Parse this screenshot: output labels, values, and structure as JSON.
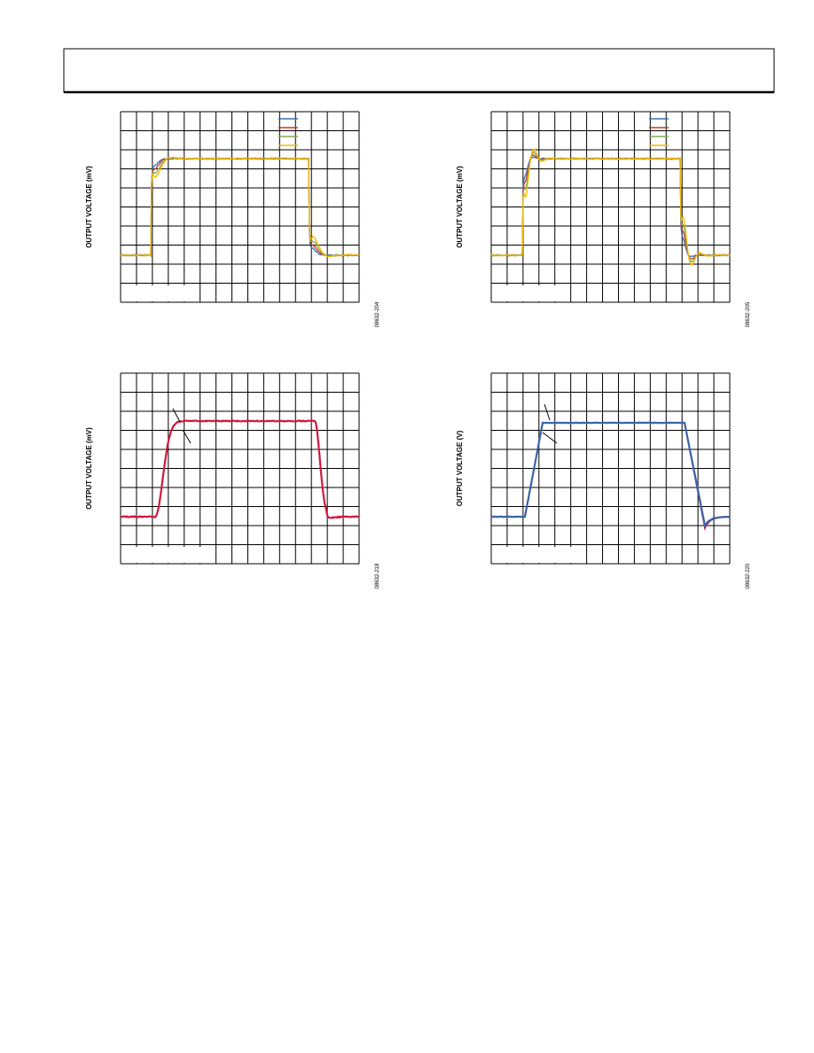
{
  "figures": [
    {
      "y_label": "OUTPUT VOLTAGE (mV)",
      "id": "08632-204"
    },
    {
      "y_label": "OUTPUT VOLTAGE (mV)",
      "id": "08632-205"
    },
    {
      "y_label": "OUTPUT VOLTAGE (mV)",
      "id": "08632-218"
    },
    {
      "y_label": "OUTPUT VOLTAGE (V)",
      "id": "08632-220"
    }
  ]
}
